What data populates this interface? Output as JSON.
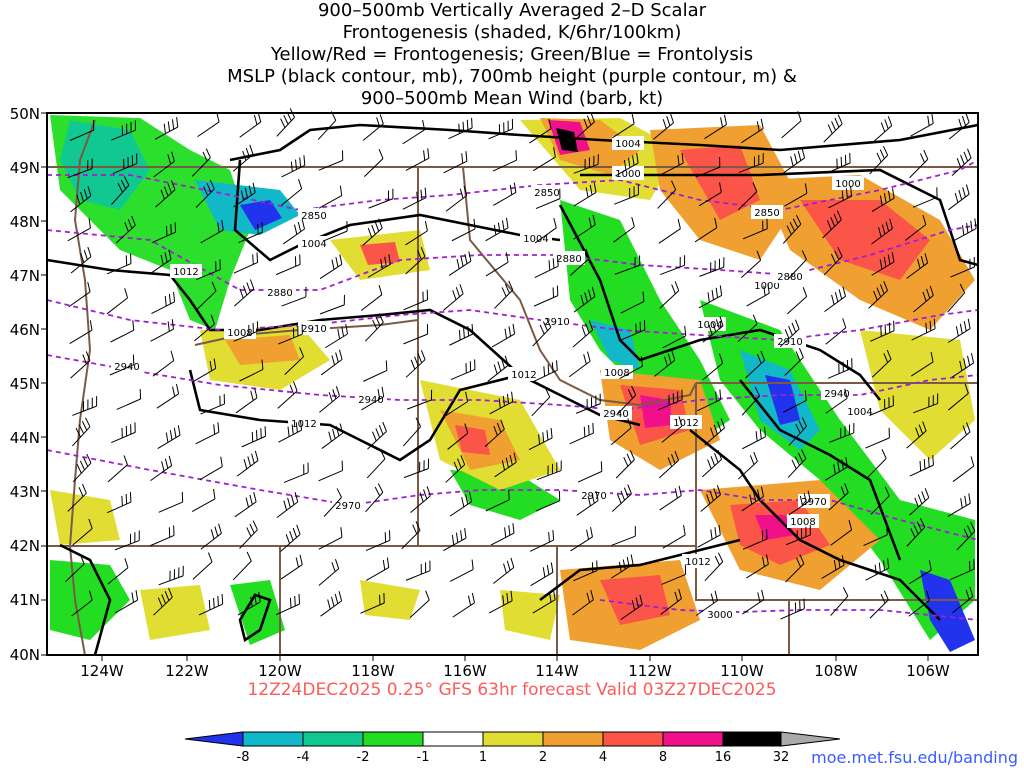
{
  "title": {
    "lines": [
      "900–500mb Vertically Averaged 2–D Scalar",
      "Frontogenesis (shaded, K/6hr/100km)",
      "Yellow/Red = Frontogenesis;  Green/Blue = Frontolysis",
      "MSLP (black contour, mb), 700mb height (purple contour, m) &",
      "900–500mb Mean Wind (barb, kt)"
    ]
  },
  "axes": {
    "lat_labels": [
      "50N",
      "49N",
      "48N",
      "47N",
      "46N",
      "45N",
      "44N",
      "43N",
      "42N",
      "41N",
      "40N"
    ],
    "lon_labels": [
      "124W",
      "122W",
      "120W",
      "118W",
      "116W",
      "114W",
      "112W",
      "110W",
      "108W",
      "106W"
    ]
  },
  "mslp_labels": [
    "1004",
    "1000",
    "1000",
    "1004",
    "1004",
    "1012",
    "1008",
    "1012",
    "1008",
    "1004",
    "1004",
    "1012",
    "1012",
    "1000",
    "1008",
    "1012",
    "1008",
    "1004"
  ],
  "height_labels": [
    "2850",
    "2850",
    "2850",
    "2880",
    "2880",
    "2880",
    "2910",
    "2910",
    "2910",
    "2940",
    "2940",
    "2940",
    "2940",
    "2970",
    "2970",
    "2970",
    "3000"
  ],
  "colorbar": {
    "tick_labels": [
      "-8",
      "-4",
      "-2",
      "-1",
      "1",
      "2",
      "4",
      "8",
      "16",
      "32"
    ],
    "colors": [
      "#2233ee",
      "#11b8c8",
      "#11c890",
      "#22dd22",
      "#ffffff",
      "#e2dd33",
      "#f0a030",
      "#fa5548",
      "#f0108a",
      "#000000",
      "#aaaaaa"
    ]
  },
  "valid_line": "12Z24DEC2025 0.25° GFS 63hr forecast Valid 03Z27DEC2025",
  "credit": "moe.met.fsu.edu/banding"
}
